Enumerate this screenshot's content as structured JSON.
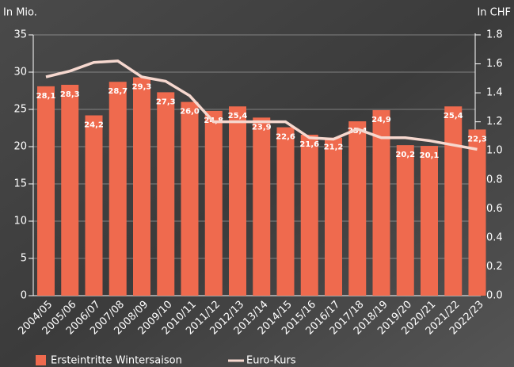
{
  "chart_data": {
    "type": "bar",
    "y_label": "In Mio.",
    "y2_label": "In CHF",
    "categories": [
      "2004/05",
      "2005/06",
      "2006/07",
      "2007/08",
      "2008/09",
      "2009/10",
      "2010/11",
      "2011/12",
      "2012/13",
      "2013/14",
      "2014/15",
      "2015/16",
      "2016/17",
      "2017/18",
      "2018/19",
      "2019/20",
      "2020/21",
      "2021/22",
      "2022/23"
    ],
    "series": [
      {
        "name": "Ersteintritte Wintersaison",
        "color": "#ef6a4e",
        "type": "bar",
        "values": [
          28.1,
          28.3,
          24.2,
          28.7,
          29.3,
          27.3,
          26.0,
          24.8,
          25.4,
          23.9,
          22.6,
          21.6,
          21.2,
          23.4,
          24.9,
          20.2,
          20.1,
          25.4,
          22.3
        ],
        "value_labels": [
          "28,1",
          "28,3",
          "24,2",
          "28,7",
          "29,3",
          "27,3",
          "26,0",
          "24,8",
          "25,4",
          "23,9",
          "22,6",
          "21,6",
          "21,2",
          "23,4",
          "24,9",
          "20,2",
          "20,1",
          "25,4",
          "22,3"
        ]
      },
      {
        "name": "Euro-Kurs",
        "color": "#f6d8cf",
        "type": "line",
        "axis": "y2",
        "values": [
          1.51,
          1.55,
          1.61,
          1.62,
          1.51,
          1.48,
          1.38,
          1.2,
          1.2,
          1.2,
          1.2,
          1.09,
          1.08,
          1.15,
          1.09,
          1.09,
          1.07,
          1.04,
          1.01
        ]
      }
    ],
    "ylim": [
      0,
      35
    ],
    "yticks": [
      0,
      5,
      10,
      15,
      20,
      25,
      30,
      35
    ],
    "y2lim": [
      0,
      1.8
    ],
    "y2ticks": [
      {
        "value": 0,
        "label": "0.0"
      },
      0.2,
      0.4,
      0.6,
      0.8,
      {
        "value": 1,
        "label": "1.0"
      },
      1.2,
      1.4,
      1.6,
      1.8
    ],
    "grid": true
  }
}
